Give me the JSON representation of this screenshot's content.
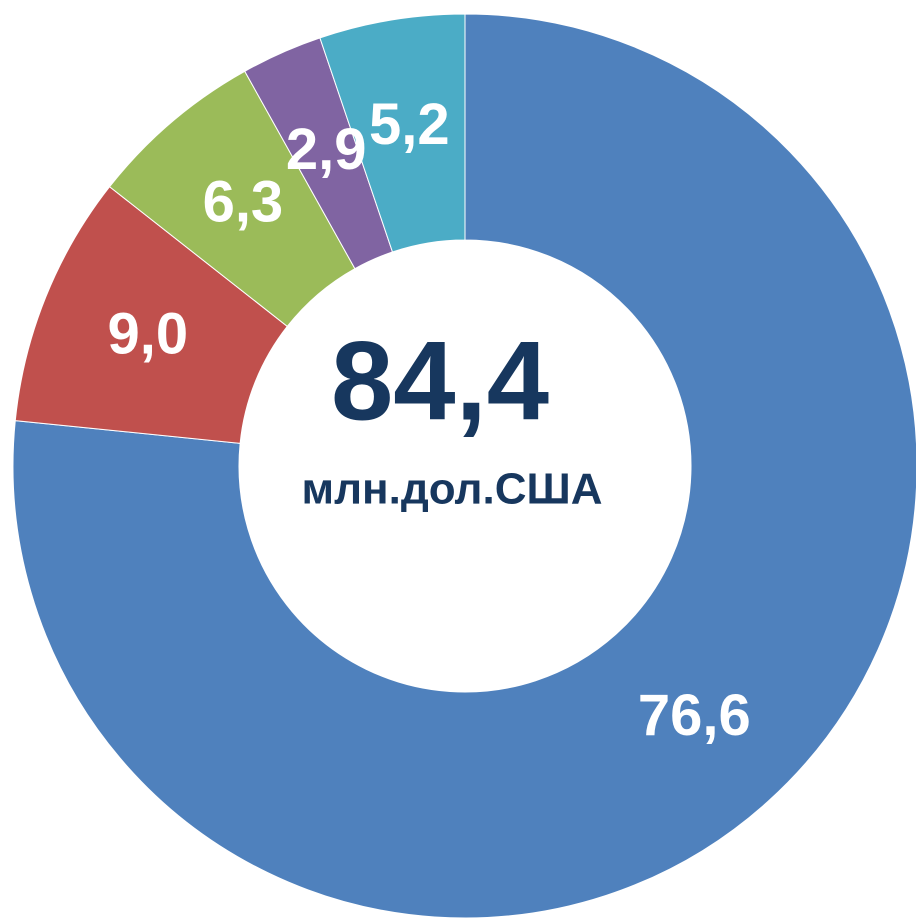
{
  "chart_data": {
    "type": "donut",
    "center_value": "84,4",
    "center_unit": "млн.дол.США",
    "categories": [
      null,
      null,
      null,
      null,
      null
    ],
    "values": [
      76.6,
      9.0,
      6.3,
      2.9,
      5.2
    ],
    "value_labels": [
      "76,6",
      "9,0",
      "6,3",
      "2,9",
      "5,2"
    ],
    "colors": [
      "#4f81bd",
      "#c0504d",
      "#9bbb59",
      "#8064a2",
      "#4bacc6"
    ]
  }
}
